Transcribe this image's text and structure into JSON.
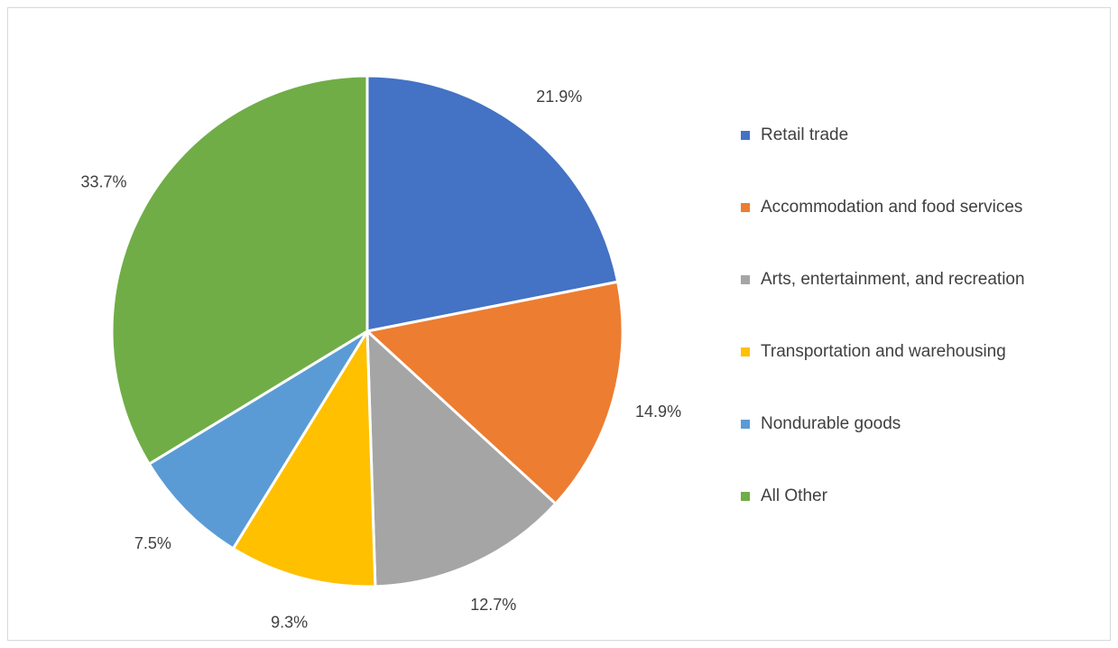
{
  "chart_data": {
    "type": "pie",
    "categories": [
      "Retail trade",
      "Accommodation and food services",
      "Arts, entertainment, and recreation",
      "Transportation and warehousing",
      "Nondurable goods",
      "All Other"
    ],
    "values": [
      21.9,
      14.9,
      12.7,
      9.3,
      7.5,
      33.7
    ],
    "value_labels": [
      "21.9%",
      "14.9%",
      "12.7%",
      "9.3%",
      "7.5%",
      "33.7%"
    ],
    "colors": [
      "#4472c4",
      "#ed7d31",
      "#a5a5a5",
      "#ffc000",
      "#5b9bd5",
      "#70ad47"
    ],
    "legend": "right"
  }
}
